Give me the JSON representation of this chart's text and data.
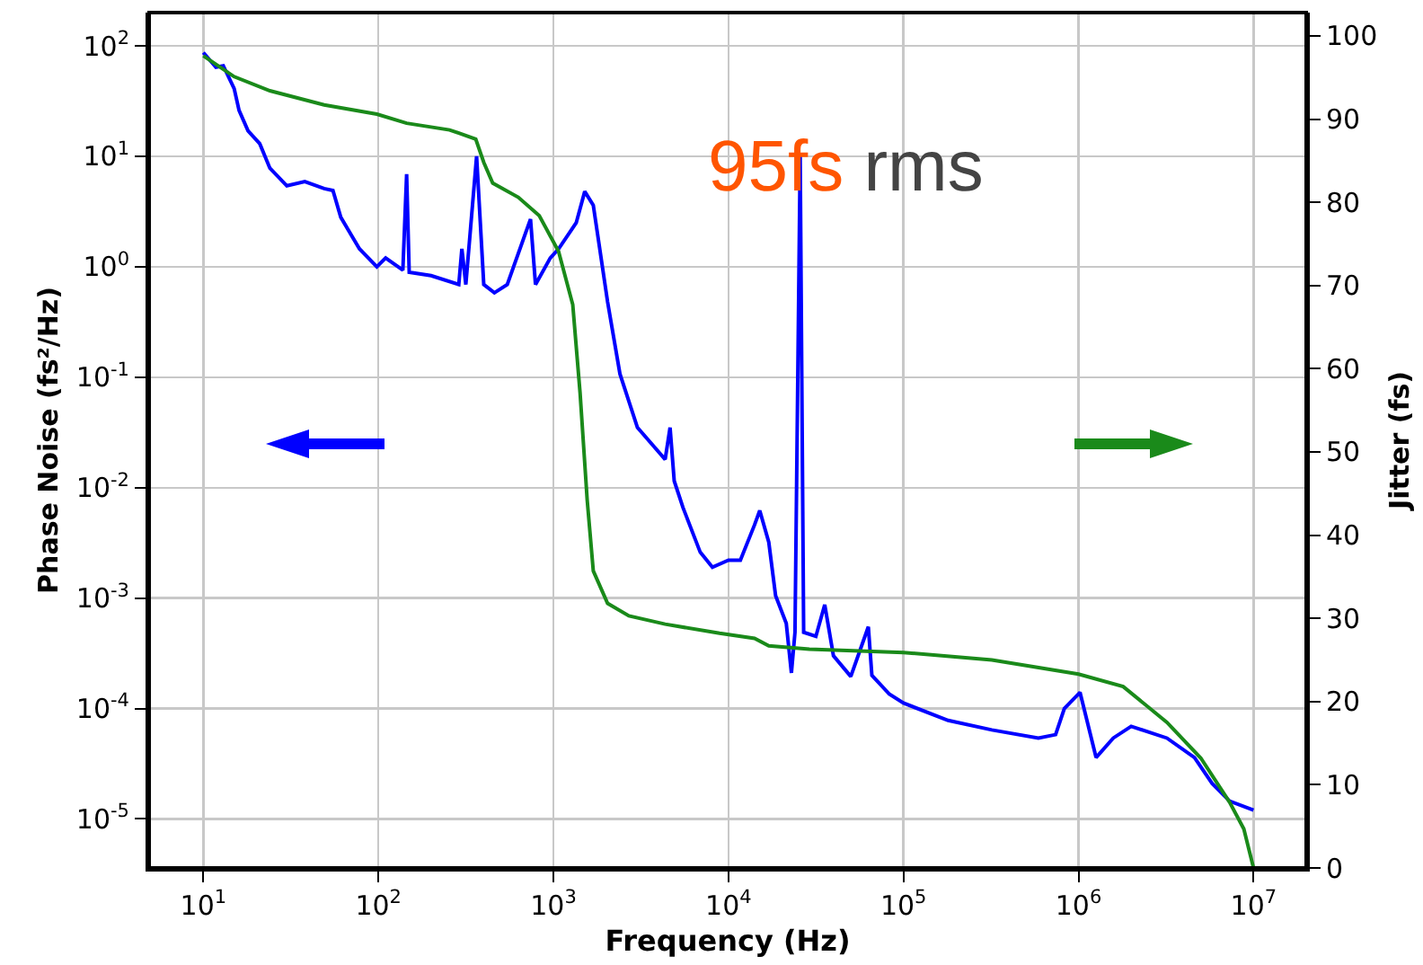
{
  "chart_data": {
    "type": "line",
    "xlabel": "Frequency (Hz)",
    "ylabel": "Phase Noise (fs²/Hz)",
    "y2label": "Jitter (fs)",
    "log": "xy",
    "grid": true,
    "line_style": "solid",
    "marker": "none",
    "xlim": [
      4.9,
      20000000
    ],
    "ylim": [
      3.6e-06,
      200
    ],
    "y2lim": [
      0,
      102.8
    ],
    "xticks": [
      {
        "value": 10,
        "label": "10$^{1}$"
      },
      {
        "value": 100,
        "label": "10$^{2}$"
      },
      {
        "value": 1000,
        "label": "10$^{3}$"
      },
      {
        "value": 10000,
        "label": "10$^{4}$"
      },
      {
        "value": 100000,
        "label": "10$^{5}$"
      },
      {
        "value": 1000000,
        "label": "10$^{6}$"
      },
      {
        "value": 10000000,
        "label": "10$^{7}$"
      }
    ],
    "yticks": [
      {
        "value": 1e-05,
        "label": "10$^{-5}$"
      },
      {
        "value": 0.0001,
        "label": "10$^{-4}$"
      },
      {
        "value": 0.001,
        "label": "10$^{-3}$"
      },
      {
        "value": 0.01,
        "label": "10$^{-2}$"
      },
      {
        "value": 0.1,
        "label": "10$^{-1}$"
      },
      {
        "value": 1,
        "label": "10$^{0}$"
      },
      {
        "value": 10,
        "label": "10$^{1}$"
      },
      {
        "value": 100,
        "label": "10$^{2}$"
      }
    ],
    "y2ticks": [
      0,
      10,
      20,
      30,
      40,
      50,
      60,
      70,
      80,
      90,
      100
    ],
    "annotations": [
      "95fs rms"
    ],
    "series": [
      {
        "color": "#0000ff",
        "x": [
          10,
          11.8,
          13,
          15,
          16,
          18,
          21,
          24,
          30,
          38,
          49,
          55,
          61,
          78,
          98,
          110,
          138,
          145,
          150,
          200,
          288,
          300,
          316,
          364,
          400,
          460,
          545,
          740,
          790,
          960,
          1070,
          1350,
          1510,
          1690,
          2040,
          2400,
          3020,
          4350,
          4640,
          4900,
          5500,
          6900,
          8100,
          10000,
          11700,
          14100,
          15100,
          17000,
          18600,
          21400,
          22900,
          24000,
          25700,
          26900,
          31600,
          35500,
          39800,
          50000,
          63000,
          66000,
          83000,
          100000,
          180000,
          320000,
          590000,
          740000,
          830000,
          1020000,
          1260000,
          1580000,
          2000000,
          3200000,
          4600000,
          5800000,
          7300000,
          10000000
        ],
        "values": [
          87,
          64,
          66,
          41,
          26,
          17,
          13,
          7.8,
          5.4,
          5.9,
          5.1,
          4.9,
          2.8,
          1.45,
          1.0,
          1.2,
          0.93,
          6.9,
          0.89,
          0.83,
          0.69,
          1.45,
          0.69,
          10,
          0.69,
          0.58,
          0.69,
          2.7,
          0.69,
          1.2,
          1.45,
          2.5,
          4.8,
          3.6,
          0.48,
          0.107,
          0.035,
          0.018,
          0.035,
          0.0115,
          0.0066,
          0.0026,
          0.0019,
          0.0022,
          0.0022,
          0.0046,
          0.0062,
          0.0032,
          0.00105,
          0.00059,
          0.00021,
          0.00049,
          10,
          0.00049,
          0.00045,
          0.00087,
          0.0003,
          0.000195,
          0.00055,
          0.0002,
          0.000135,
          0.000112,
          7.8e-05,
          6.4e-05,
          5.4e-05,
          5.8e-05,
          0.0001,
          0.00014,
          3.6e-05,
          5.4e-05,
          6.9e-05,
          5.4e-05,
          3.6e-05,
          2.1e-05,
          1.45e-05,
          1.2e-05
        ]
      },
      {
        "color": "#1a8a1a",
        "axis": "y2",
        "x": [
          10,
          15,
          24,
          49,
          98,
          145,
          255,
          360,
          400,
          450,
          630,
          830,
          1070,
          1290,
          1420,
          1560,
          1690,
          2040,
          2700,
          4350,
          8900,
          14100,
          17000,
          29000,
          100000,
          320000,
          1000000,
          1800000,
          3200000,
          5000000,
          7300000,
          8800000,
          10000000
        ],
        "values": [
          97.6,
          95.1,
          93.4,
          91.7,
          90.6,
          89.5,
          88.7,
          87.6,
          84.8,
          82.3,
          80.6,
          78.4,
          74.1,
          67.7,
          57.1,
          44.2,
          35.7,
          31.8,
          30.3,
          29.3,
          28.2,
          27.6,
          26.7,
          26.3,
          25.9,
          25.0,
          23.3,
          21.8,
          17.5,
          13.2,
          7.9,
          4.7,
          0
        ]
      }
    ]
  }
}
